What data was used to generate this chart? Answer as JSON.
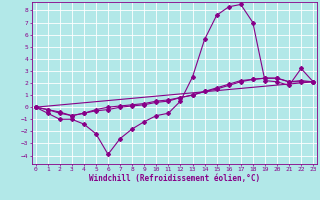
{
  "xlabel": "Windchill (Refroidissement éolien,°C)",
  "background_color": "#b2e8e8",
  "grid_color": "#ffffff",
  "line_color": "#880088",
  "x_ticks": [
    0,
    1,
    2,
    3,
    4,
    5,
    6,
    7,
    8,
    9,
    10,
    11,
    12,
    13,
    14,
    15,
    16,
    17,
    18,
    19,
    20,
    21,
    22,
    23
  ],
  "y_ticks": [
    -4,
    -3,
    -2,
    -1,
    0,
    1,
    2,
    3,
    4,
    5,
    6,
    7,
    8
  ],
  "xlim": [
    -0.3,
    23.3
  ],
  "ylim": [
    -4.7,
    8.7
  ],
  "series1_x": [
    0,
    1,
    2,
    3,
    4,
    5,
    6,
    7,
    8,
    9,
    10,
    11,
    12,
    13,
    14,
    15,
    16,
    17,
    18,
    19,
    20,
    21,
    22,
    23
  ],
  "series1_y": [
    0,
    -0.5,
    -1.0,
    -1.0,
    -1.4,
    -2.2,
    -3.9,
    -2.6,
    -1.8,
    -1.2,
    -0.7,
    -0.5,
    0.5,
    2.5,
    5.6,
    7.6,
    8.3,
    8.5,
    7.0,
    2.2,
    2.1,
    1.8,
    3.2,
    2.1
  ],
  "series2_x": [
    0,
    1,
    2,
    3,
    4,
    5,
    6,
    7,
    8,
    9,
    10,
    11,
    12,
    13,
    14,
    15,
    16,
    17,
    18,
    19,
    20,
    21,
    22,
    23
  ],
  "series2_y": [
    0,
    -0.2,
    -0.5,
    -0.7,
    -0.5,
    -0.3,
    -0.2,
    0.0,
    0.1,
    0.2,
    0.4,
    0.5,
    0.8,
    1.0,
    1.3,
    1.6,
    1.9,
    2.2,
    2.3,
    2.4,
    2.4,
    2.1,
    2.2,
    2.1
  ],
  "series3_x": [
    0,
    23
  ],
  "series3_y": [
    0,
    2.1
  ],
  "series4_x": [
    0,
    1,
    2,
    3,
    4,
    5,
    6,
    7,
    8,
    9,
    10,
    11,
    12,
    13,
    14,
    15,
    16,
    17,
    18,
    19,
    20,
    21,
    22,
    23
  ],
  "series4_y": [
    0,
    -0.2,
    -0.4,
    -0.7,
    -0.5,
    -0.2,
    0.0,
    0.1,
    0.2,
    0.3,
    0.5,
    0.6,
    0.8,
    1.0,
    1.3,
    1.5,
    1.8,
    2.1,
    2.3,
    2.4,
    2.4,
    2.1,
    2.1,
    2.1
  ],
  "tick_fontsize": 4.5,
  "xlabel_fontsize": 5.5,
  "line_width": 0.8,
  "marker_size": 2.0
}
